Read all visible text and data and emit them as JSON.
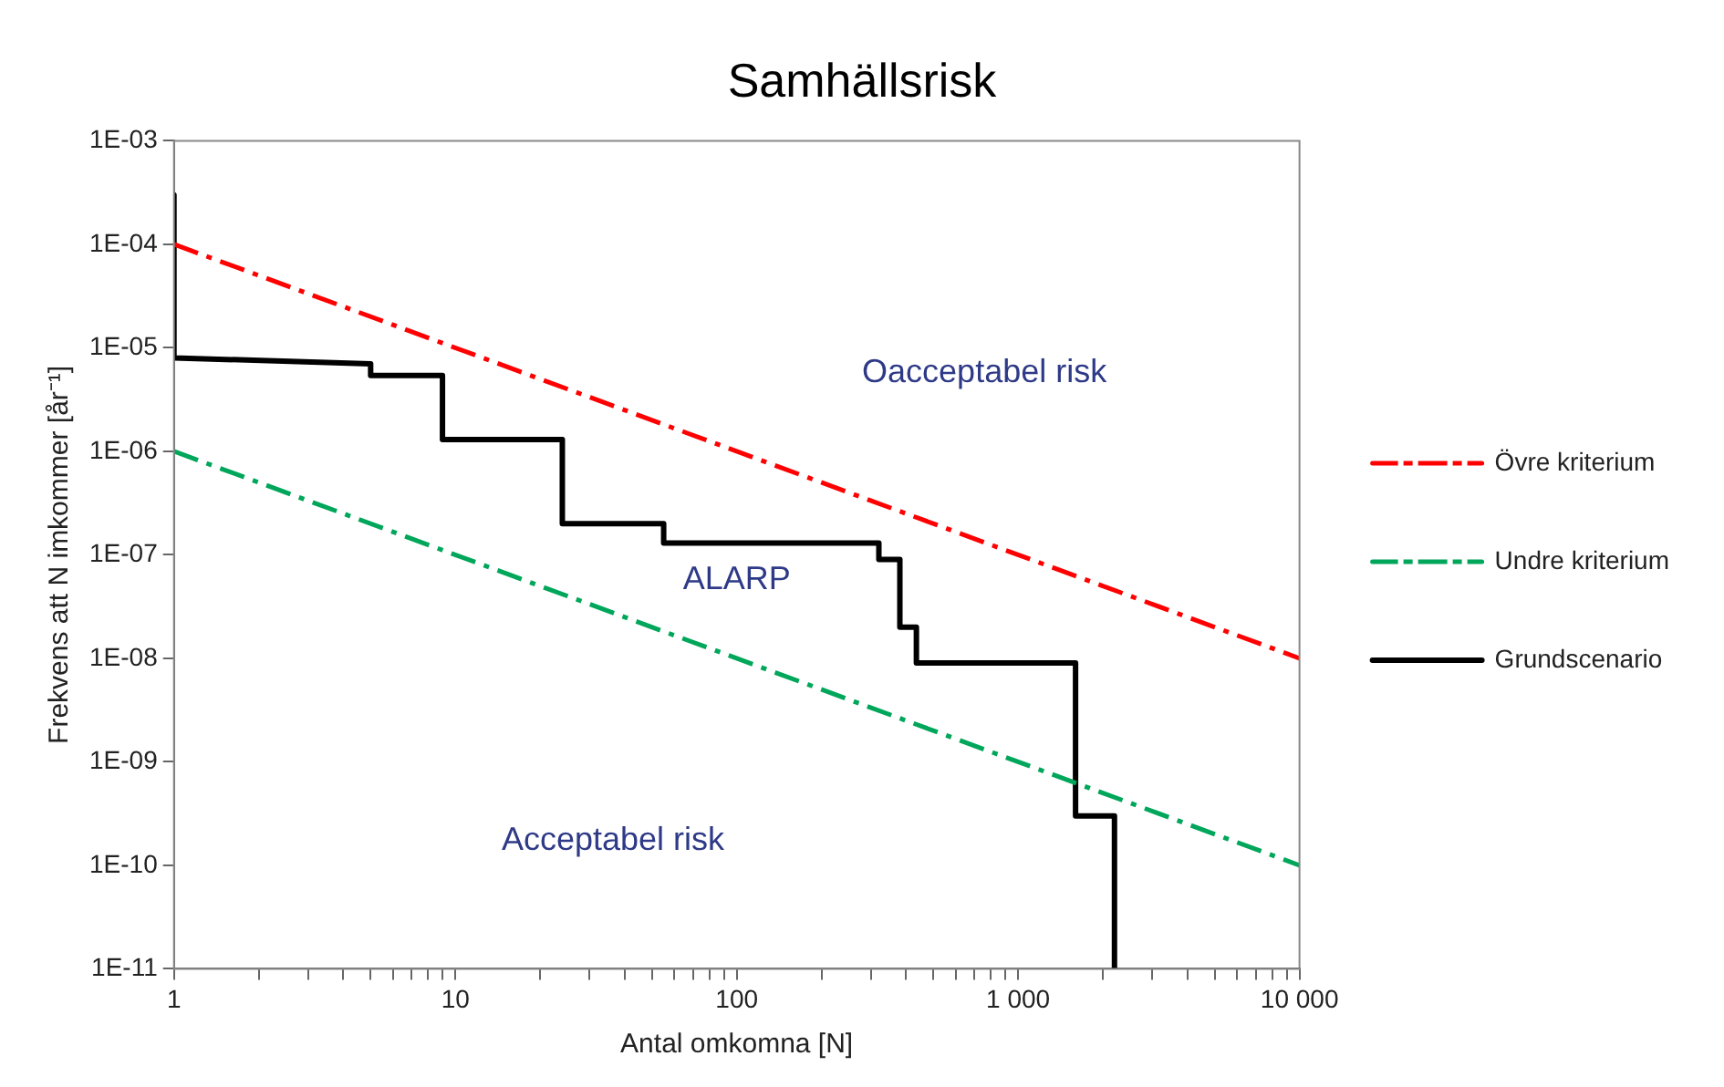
{
  "chart_data": {
    "type": "line",
    "title": "Samhällsrisk",
    "xlabel": "Antal omkomna [N]",
    "ylabel": "Frekvens att N imkommer [år⁻¹]",
    "log": "xy",
    "grid": false,
    "legend": "right",
    "marker": "none",
    "xlim": [
      1,
      10000
    ],
    "xticks": [
      1,
      {
        "value": 2,
        "label": null
      },
      {
        "value": 3,
        "label": null
      },
      {
        "value": 4,
        "label": null
      },
      {
        "value": 5,
        "label": null
      },
      {
        "value": 6,
        "label": null
      },
      {
        "value": 7,
        "label": null
      },
      {
        "value": 8,
        "label": null
      },
      {
        "value": 9,
        "label": null
      },
      10,
      {
        "value": 20,
        "label": null
      },
      {
        "value": 30,
        "label": null
      },
      {
        "value": 40,
        "label": null
      },
      {
        "value": 50,
        "label": null
      },
      {
        "value": 60,
        "label": null
      },
      {
        "value": 70,
        "label": null
      },
      {
        "value": 80,
        "label": null
      },
      {
        "value": 90,
        "label": null
      },
      100,
      {
        "value": 200,
        "label": null
      },
      {
        "value": 300,
        "label": null
      },
      {
        "value": 400,
        "label": null
      },
      {
        "value": 500,
        "label": null
      },
      {
        "value": 600,
        "label": null
      },
      {
        "value": 700,
        "label": null
      },
      {
        "value": 800,
        "label": null
      },
      {
        "value": 900,
        "label": null
      },
      {
        "value": 1000,
        "label": "1 000"
      },
      {
        "value": 2000,
        "label": null
      },
      {
        "value": 3000,
        "label": null
      },
      {
        "value": 4000,
        "label": null
      },
      {
        "value": 5000,
        "label": null
      },
      {
        "value": 6000,
        "label": null
      },
      {
        "value": 7000,
        "label": null
      },
      {
        "value": 8000,
        "label": null
      },
      {
        "value": 9000,
        "label": null
      },
      {
        "value": 10000,
        "label": "10 000"
      }
    ],
    "ylim": [
      1e-11,
      0.001
    ],
    "yticks": [
      {
        "value": 1e-11,
        "label": "1E-11"
      },
      {
        "value": 1e-10,
        "label": "1E-10"
      },
      {
        "value": 1e-09,
        "label": "1E-09"
      },
      {
        "value": 1e-08,
        "label": "1E-08"
      },
      {
        "value": 1e-07,
        "label": "1E-07"
      },
      {
        "value": 1e-06,
        "label": "1E-06"
      },
      {
        "value": 1e-05,
        "label": "1E-05"
      },
      {
        "value": 0.0001,
        "label": "1E-04"
      },
      {
        "value": 0.001,
        "label": "1E-03"
      }
    ],
    "series": [
      {
        "name": "Övre kriterium",
        "color": "#ff0000",
        "line_style": "dashed",
        "x": [
          1,
          10000
        ],
        "values": [
          0.0001,
          1e-08
        ]
      },
      {
        "name": "Undre kriterium",
        "color": "#00a65a",
        "line_style": "dashed",
        "x": [
          1,
          10000
        ],
        "values": [
          1e-06,
          1e-10
        ]
      },
      {
        "name": "Grundscenario",
        "color": "#000000",
        "line_style": "solid",
        "x": [
          1,
          1,
          5,
          5,
          9,
          9,
          24,
          24,
          55,
          55,
          320,
          320,
          380,
          380,
          435,
          435,
          1600,
          1600,
          2200,
          2200
        ],
        "values": [
          0.0003,
          8e-06,
          7e-06,
          5.4e-06,
          5.4e-06,
          1.3e-06,
          1.3e-06,
          2e-07,
          2e-07,
          1.3e-07,
          1.3e-07,
          9e-08,
          9e-08,
          2e-08,
          2e-08,
          9e-09,
          9e-09,
          3e-10,
          3e-10,
          1e-11
        ]
      }
    ],
    "annotations": [
      "Oacceptabel risk",
      "ALARP",
      "Acceptabel risk"
    ]
  }
}
